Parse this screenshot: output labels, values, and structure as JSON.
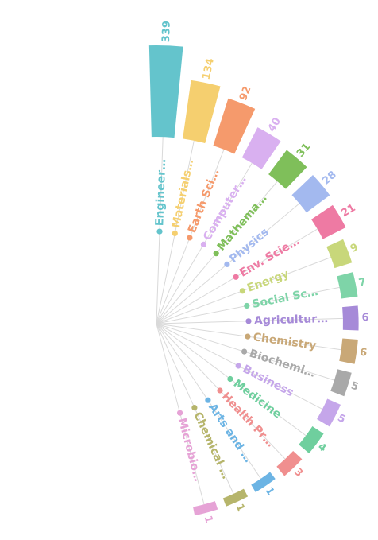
{
  "chart_data": {
    "type": "radial-bar",
    "title": "",
    "categories": [
      "Engineer…",
      "Materials…",
      "Earth Sci…",
      "Computer…",
      "Mathema…",
      "Physics",
      "Env. Scie…",
      "Energy",
      "Social Sc…",
      "Agricultur…",
      "Chemistry",
      "Biochemi…",
      "Business",
      "Medicine",
      "Health Pr…",
      "Arts and …",
      "Chemical …",
      "Microbio…"
    ],
    "values": [
      339,
      134,
      92,
      40,
      31,
      28,
      21,
      9,
      7,
      6,
      6,
      5,
      5,
      4,
      3,
      1,
      1,
      1
    ],
    "colors": [
      "#64c4cc",
      "#f5cf6f",
      "#f59a6c",
      "#d9b0f0",
      "#7fbf5a",
      "#a3b9ef",
      "#ee7aa3",
      "#c8d77a",
      "#7ed4a8",
      "#a68ad8",
      "#c9a877",
      "#a9a9a9",
      "#c5a6ea",
      "#6fcf9e",
      "#f08f8f",
      "#6cb4e4",
      "#b6b56b",
      "#e6a3d6"
    ],
    "scale": "sqrt",
    "orientation": "half-circle opening right"
  }
}
